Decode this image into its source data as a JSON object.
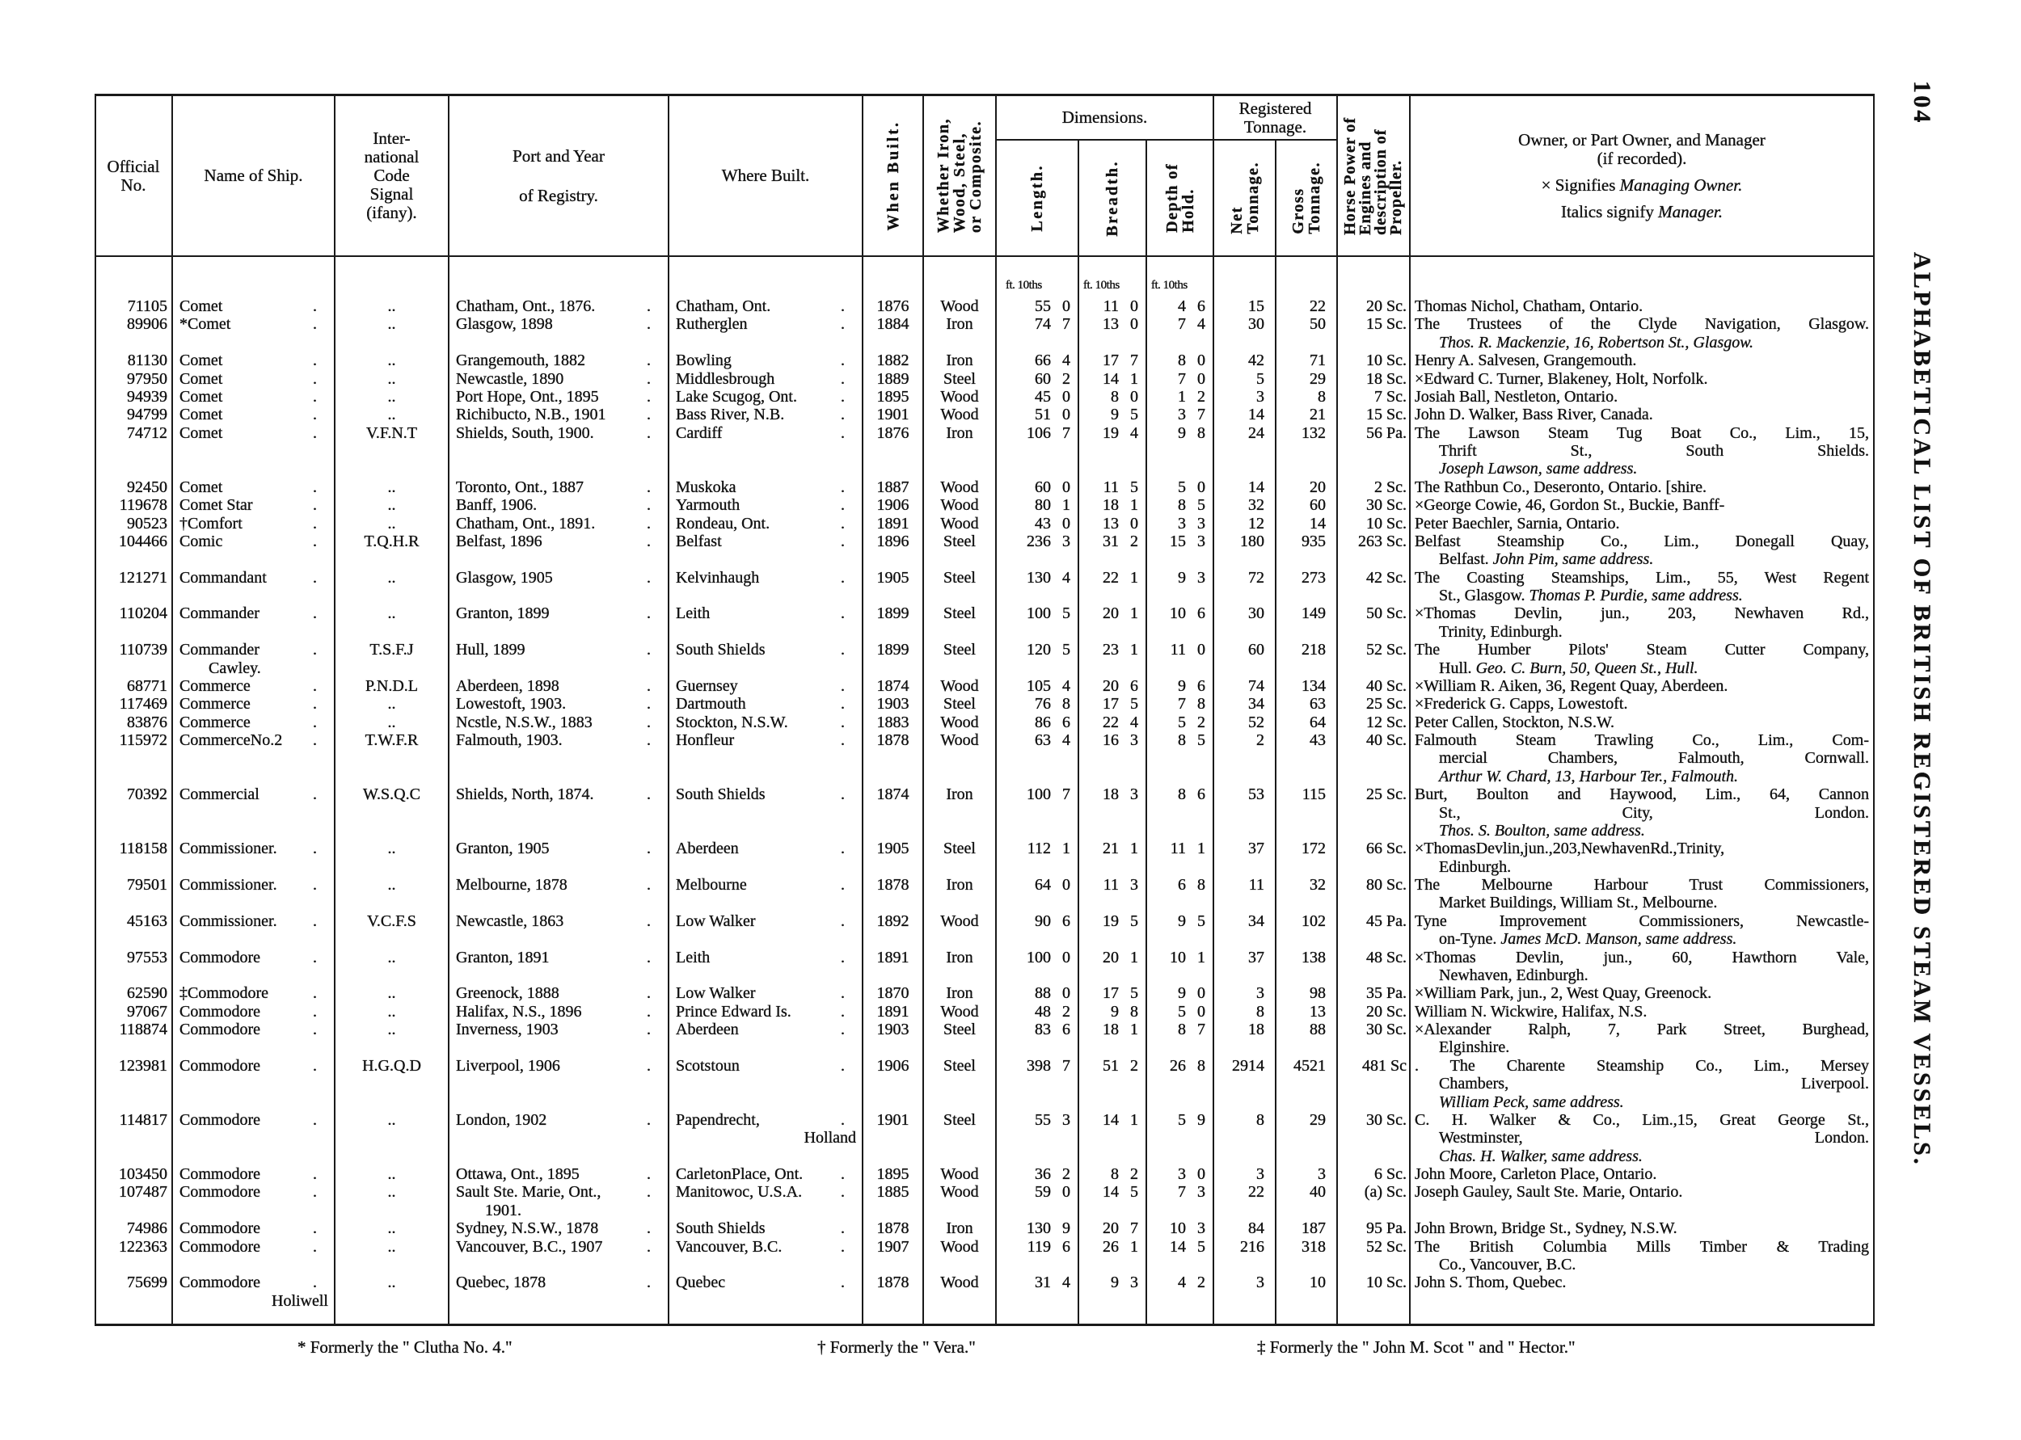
{
  "page_number": "104",
  "running_title": "ALPHABETICAL LIST OF BRITISH REGISTERED STEAM VESSELS.",
  "header": {
    "official_no": [
      "Official",
      "No."
    ],
    "name": "Name of Ship.",
    "signal": [
      "Inter-",
      "national",
      "Code",
      "Signal",
      "(ifany)."
    ],
    "port": [
      "Port and Year",
      "of Registry."
    ],
    "where_built": "Where Built.",
    "when_built": "When Built.",
    "material": [
      "Whether  Iron,",
      "Wood, Steel,",
      "or Composite."
    ],
    "dimensions": "Dimensions.",
    "length": "Length.",
    "breadth": "Breadth.",
    "depth": [
      "Depth of",
      "Hold."
    ],
    "tonnage": [
      "Registered",
      "Tonnage."
    ],
    "net": [
      "Net",
      "Tonnage."
    ],
    "gross": [
      "Gross",
      "Tonnage."
    ],
    "horse_power": [
      "Horse Power of",
      "Engines and",
      "description of",
      "Propeller."
    ],
    "owner": {
      "line1": "Owner, or Part Owner, and Manager",
      "line2": "(if recorded).",
      "line3_roman": "× Signifies ",
      "line3_italic": "Managing Owner.",
      "line4_roman": "Italics signify ",
      "line4_italic": "Manager."
    },
    "units": "ft. 10ths"
  },
  "rows": [
    {
      "no": "71105",
      "name": "Comet",
      "signal": "..",
      "port": "Chatham, Ont., 1876.",
      "where": "Chatham, Ont.",
      "year": "1876",
      "material": "Wood",
      "length": [
        "55",
        "0"
      ],
      "breadth": [
        "11",
        "0"
      ],
      "depth": [
        "4",
        "6"
      ],
      "net": "15",
      "gross": "22",
      "hp": "20 Sc.",
      "owner": [
        "Thomas Nichol, Chatham, Ontario."
      ]
    },
    {
      "no": "89906",
      "name": "*Comet",
      "signal": "..",
      "port": "Glasgow, 1898",
      "where": "Rutherglen",
      "year": "1884",
      "material": "Iron",
      "length": [
        "74",
        "7"
      ],
      "breadth": [
        "13",
        "0"
      ],
      "depth": [
        "7",
        "4"
      ],
      "net": "30",
      "gross": "50",
      "hp": "15 Sc.",
      "owner": [
        "The Trustees of the Clyde Navigation, Glasgow.",
        {
          "italic": "Thos. R. Mackenzie, 16, Robertson St., Glasgow."
        }
      ]
    },
    {
      "no": "81130",
      "name": "Comet",
      "signal": "..",
      "port": "Grangemouth, 1882",
      "where": "Bowling",
      "year": "1882",
      "material": "Iron",
      "length": [
        "66",
        "4"
      ],
      "breadth": [
        "17",
        "7"
      ],
      "depth": [
        "8",
        "0"
      ],
      "net": "42",
      "gross": "71",
      "hp": "10 Sc.",
      "owner": [
        "Henry A. Salvesen, Grangemouth."
      ]
    },
    {
      "no": "97950",
      "name": "Comet",
      "signal": "..",
      "port": "Newcastle, 1890",
      "where": "Middlesbrough",
      "year": "1889",
      "material": "Steel",
      "length": [
        "60",
        "2"
      ],
      "breadth": [
        "14",
        "1"
      ],
      "depth": [
        "7",
        "0"
      ],
      "net": "5",
      "gross": "29",
      "hp": "18 Sc.",
      "owner": [
        "×Edward C. Turner, Blakeney, Holt, Norfolk."
      ]
    },
    {
      "no": "94939",
      "name": "Comet",
      "signal": "..",
      "port": "Port Hope, Ont., 1895",
      "where": "Lake Scugog, Ont.",
      "year": "1895",
      "material": "Wood",
      "length": [
        "45",
        "0"
      ],
      "breadth": [
        "8",
        "0"
      ],
      "depth": [
        "1",
        "2"
      ],
      "net": "3",
      "gross": "8",
      "hp": "7 Sc.",
      "owner": [
        "Josiah Ball, Nestleton, Ontario."
      ]
    },
    {
      "no": "94799",
      "name": "Comet",
      "signal": "..",
      "port": "Richibucto, N.B., 1901",
      "where": "Bass River, N.B.",
      "year": "1901",
      "material": "Wood",
      "length": [
        "51",
        "0"
      ],
      "breadth": [
        "9",
        "5"
      ],
      "depth": [
        "3",
        "7"
      ],
      "net": "14",
      "gross": "21",
      "hp": "15 Sc.",
      "owner": [
        "John D. Walker, Bass River, Canada."
      ]
    },
    {
      "no": "74712",
      "name": "Comet",
      "signal": "V.F.N.T",
      "port": "Shields, South, 1900.",
      "where": "Cardiff",
      "year": "1876",
      "material": "Iron",
      "length": [
        "106",
        "7"
      ],
      "breadth": [
        "19",
        "4"
      ],
      "depth": [
        "9",
        "8"
      ],
      "net": "24",
      "gross": "132",
      "hp": "56 Pa.",
      "owner": [
        "The Lawson Steam Tug Boat Co., Lim., 15,",
        "Thrift St., South Shields.",
        {
          "italic": "Joseph Lawson, same address."
        }
      ]
    },
    {
      "no": "92450",
      "name": "Comet",
      "signal": "..",
      "port": "Toronto, Ont., 1887",
      "where": "Muskoka",
      "year": "1887",
      "material": "Wood",
      "length": [
        "60",
        "0"
      ],
      "breadth": [
        "11",
        "5"
      ],
      "depth": [
        "5",
        "0"
      ],
      "net": "14",
      "gross": "20",
      "hp": "2 Sc.",
      "owner": [
        "The Rathbun Co., Deseronto, Ontario.   [shire."
      ]
    },
    {
      "no": "119678",
      "name": "Comet Star",
      "signal": "..",
      "port": "Banff, 1906.",
      "where": "Yarmouth",
      "year": "1906",
      "material": "Wood",
      "length": [
        "80",
        "1"
      ],
      "breadth": [
        "18",
        "1"
      ],
      "depth": [
        "8",
        "5"
      ],
      "net": "32",
      "gross": "60",
      "hp": "30 Sc.",
      "owner": [
        "×George Cowie, 46, Gordon St., Buckie, Banff-"
      ]
    },
    {
      "no": "90523",
      "name": "†Comfort",
      "signal": "..",
      "port": "Chatham, Ont., 1891.",
      "where": "Rondeau, Ont.",
      "year": "1891",
      "material": "Wood",
      "length": [
        "43",
        "0"
      ],
      "breadth": [
        "13",
        "0"
      ],
      "depth": [
        "3",
        "3"
      ],
      "net": "12",
      "gross": "14",
      "hp": "10 Sc.",
      "owner": [
        "Peter Baechler, Sarnia, Ontario."
      ]
    },
    {
      "no": "104466",
      "name": "Comic",
      "signal": "T.Q.H.R",
      "port": "Belfast, 1896",
      "where": "Belfast",
      "year": "1896",
      "material": "Steel",
      "length": [
        "236",
        "3"
      ],
      "breadth": [
        "31",
        "2"
      ],
      "depth": [
        "15",
        "3"
      ],
      "net": "180",
      "gross": "935",
      "hp": "263 Sc.",
      "owner": [
        "Belfast Steamship Co., Lim., Donegall Quay,",
        {
          "roman": "Belfast.  ",
          "italic": "John Pim, same address."
        }
      ]
    },
    {
      "no": "121271",
      "name": "Commandant",
      "signal": "..",
      "port": "Glasgow, 1905",
      "where": "Kelvinhaugh",
      "year": "1905",
      "material": "Steel",
      "length": [
        "130",
        "4"
      ],
      "breadth": [
        "22",
        "1"
      ],
      "depth": [
        "9",
        "3"
      ],
      "net": "72",
      "gross": "273",
      "hp": "42 Sc.",
      "owner": [
        "The Coasting Steamships, Lim., 55, West Regent",
        {
          "roman": "St., Glasgow.  ",
          "italic": "Thomas P. Purdie, same address."
        }
      ]
    },
    {
      "no": "110204",
      "name": "Commander",
      "signal": "..",
      "port": "Granton, 1899",
      "where": "Leith",
      "year": "1899",
      "material": "Steel",
      "length": [
        "100",
        "5"
      ],
      "breadth": [
        "20",
        "1"
      ],
      "depth": [
        "10",
        "6"
      ],
      "net": "30",
      "gross": "149",
      "hp": "50 Sc.",
      "owner": [
        "×Thomas Devlin, jun., 203, Newhaven Rd.,",
        "Trinity, Edinburgh."
      ]
    },
    {
      "no": "110739",
      "name": "Commander",
      "name2": "Cawley.",
      "signal": "T.S.F.J",
      "port": "Hull, 1899",
      "where": "South Shields",
      "year": "1899",
      "material": "Steel",
      "length": [
        "120",
        "5"
      ],
      "breadth": [
        "23",
        "1"
      ],
      "depth": [
        "11",
        "0"
      ],
      "net": "60",
      "gross": "218",
      "hp": "52 Sc.",
      "owner": [
        "The Humber Pilots' Steam Cutter Company,",
        {
          "roman": "Hull.  ",
          "italic": "Geo. C. Burn, 50, Queen St., Hull."
        }
      ]
    },
    {
      "no": "68771",
      "name": "Commerce",
      "signal": "P.N.D.L",
      "port": "Aberdeen, 1898",
      "where": "Guernsey",
      "year": "1874",
      "material": "Wood",
      "length": [
        "105",
        "4"
      ],
      "breadth": [
        "20",
        "6"
      ],
      "depth": [
        "9",
        "6"
      ],
      "net": "74",
      "gross": "134",
      "hp": "40 Sc.",
      "owner": [
        "×William R. Aiken, 36, Regent Quay, Aberdeen."
      ]
    },
    {
      "no": "117469",
      "name": "Commerce",
      "signal": "..",
      "port": "Lowestoft, 1903.",
      "where": "Dartmouth",
      "year": "1903",
      "material": "Steel",
      "length": [
        "76",
        "8"
      ],
      "breadth": [
        "17",
        "5"
      ],
      "depth": [
        "7",
        "8"
      ],
      "net": "34",
      "gross": "63",
      "hp": "25 Sc.",
      "owner": [
        "×Frederick G. Capps, Lowestoft."
      ]
    },
    {
      "no": "83876",
      "name": "Commerce",
      "signal": "..",
      "port": "Ncstle, N.S.W., 1883",
      "where": "Stockton, N.S.W.",
      "year": "1883",
      "material": "Wood",
      "length": [
        "86",
        "6"
      ],
      "breadth": [
        "22",
        "4"
      ],
      "depth": [
        "5",
        "2"
      ],
      "net": "52",
      "gross": "64",
      "hp": "12 Sc.",
      "owner": [
        "Peter Callen, Stockton, N.S.W."
      ]
    },
    {
      "no": "115972",
      "name": "CommerceNo.2",
      "signal": "T.W.F.R",
      "port": "Falmouth, 1903.",
      "where": "Honfleur",
      "year": "1878",
      "material": "Wood",
      "length": [
        "63",
        "4"
      ],
      "breadth": [
        "16",
        "3"
      ],
      "depth": [
        "8",
        "5"
      ],
      "net": "2",
      "gross": "43",
      "hp": "40 Sc.",
      "owner": [
        "Falmouth Steam Trawling Co., Lim., Com-",
        "mercial Chambers, Falmouth, Cornwall.",
        {
          "italic": "Arthur W. Chard, 13, Harbour Ter., Falmouth."
        }
      ]
    },
    {
      "no": "70392",
      "name": "Commercial",
      "signal": "W.S.Q.C",
      "port": "Shields, North, 1874.",
      "where": "South Shields",
      "year": "1874",
      "material": "Iron",
      "length": [
        "100",
        "7"
      ],
      "breadth": [
        "18",
        "3"
      ],
      "depth": [
        "8",
        "6"
      ],
      "net": "53",
      "gross": "115",
      "hp": "25 Sc.",
      "owner": [
        "Burt, Boulton and Haywood, Lim., 64, Cannon",
        "St., City, London.",
        {
          "italic": "Thos. S. Boulton, same address."
        }
      ]
    },
    {
      "no": "118158",
      "name": "Commissioner.",
      "signal": "..",
      "port": "Granton, 1905",
      "where": "Aberdeen",
      "year": "1905",
      "material": "Steel",
      "length": [
        "112",
        "1"
      ],
      "breadth": [
        "21",
        "1"
      ],
      "depth": [
        "11",
        "1"
      ],
      "net": "37",
      "gross": "172",
      "hp": "66 Sc.",
      "owner": [
        "×ThomasDevlin,jun.,203,NewhavenRd.,Trinity,",
        "Edinburgh."
      ]
    },
    {
      "no": "79501",
      "name": "Commissioner.",
      "signal": "..",
      "port": "Melbourne, 1878",
      "where": "Melbourne",
      "year": "1878",
      "material": "Iron",
      "length": [
        "64",
        "0"
      ],
      "breadth": [
        "11",
        "3"
      ],
      "depth": [
        "6",
        "8"
      ],
      "net": "11",
      "gross": "32",
      "hp": "80 Sc.",
      "owner": [
        "The Melbourne Harbour Trust Commissioners,",
        "Market Buildings, William St., Melbourne."
      ]
    },
    {
      "no": "45163",
      "name": "Commissioner.",
      "signal": "V.C.F.S",
      "port": "Newcastle, 1863",
      "where": "Low Walker",
      "year": "1892",
      "material": "Wood",
      "length": [
        "90",
        "6"
      ],
      "breadth": [
        "19",
        "5"
      ],
      "depth": [
        "9",
        "5"
      ],
      "net": "34",
      "gross": "102",
      "hp": "45 Pa.",
      "owner": [
        "Tyne Improvement Commissioners, Newcastle-",
        {
          "roman": "on-Tyne.  ",
          "italic": "James McD. Manson, same address."
        }
      ]
    },
    {
      "no": "97553",
      "name": "Commodore",
      "signal": "..",
      "port": "Granton, 1891",
      "where": "Leith",
      "year": "1891",
      "material": "Iron",
      "length": [
        "100",
        "0"
      ],
      "breadth": [
        "20",
        "1"
      ],
      "depth": [
        "10",
        "1"
      ],
      "net": "37",
      "gross": "138",
      "hp": "48 Sc.",
      "owner": [
        "×Thomas Devlin, jun., 60, Hawthorn Vale,",
        "Newhaven, Edinburgh."
      ]
    },
    {
      "no": "62590",
      "name": "‡Commodore",
      "signal": "..",
      "port": "Greenock, 1888",
      "where": "Low Walker",
      "year": "1870",
      "material": "Iron",
      "length": [
        "88",
        "0"
      ],
      "breadth": [
        "17",
        "5"
      ],
      "depth": [
        "9",
        "0"
      ],
      "net": "3",
      "gross": "98",
      "hp": "35 Pa.",
      "owner": [
        "×William Park, jun., 2, West Quay, Greenock."
      ]
    },
    {
      "no": "97067",
      "name": "Commodore",
      "signal": "..",
      "port": "Halifax, N.S., 1896",
      "where": "Prince Edward Is.",
      "year": "1891",
      "material": "Wood",
      "length": [
        "48",
        "2"
      ],
      "breadth": [
        "9",
        "8"
      ],
      "depth": [
        "5",
        "0"
      ],
      "net": "8",
      "gross": "13",
      "hp": "20 Sc.",
      "owner": [
        "William N. Wickwire, Halifax, N.S."
      ]
    },
    {
      "no": "118874",
      "name": "Commodore",
      "signal": "..",
      "port": "Inverness, 1903",
      "where": "Aberdeen",
      "year": "1903",
      "material": "Steel",
      "length": [
        "83",
        "6"
      ],
      "breadth": [
        "18",
        "1"
      ],
      "depth": [
        "8",
        "7"
      ],
      "net": "18",
      "gross": "88",
      "hp": "30 Sc.",
      "owner": [
        "×Alexander Ralph, 7, Park Street, Burghead,",
        "Elginshire."
      ]
    },
    {
      "no": "123981",
      "name": "Commodore",
      "signal": "H.G.Q.D",
      "port": "Liverpool, 1906",
      "where": "Scotstoun",
      "year": "1906",
      "material": "Steel",
      "length": [
        "398",
        "7"
      ],
      "breadth": [
        "51",
        "2"
      ],
      "depth": [
        "26",
        "8"
      ],
      "net": "2914",
      "gross": "4521",
      "hp": "481 Sc",
      "owner": [
        ". The Charente Steamship Co., Lim., Mersey",
        "Chambers, Liverpool.",
        {
          "italic": "William Peck, same address."
        }
      ]
    },
    {
      "no": "114817",
      "name": "Commodore",
      "signal": "..",
      "port": "London, 1902",
      "where": "Papendrecht,",
      "where2": "Holland",
      "year": "1901",
      "material": "Steel",
      "length": [
        "55",
        "3"
      ],
      "breadth": [
        "14",
        "1"
      ],
      "depth": [
        "5",
        "9"
      ],
      "net": "8",
      "gross": "29",
      "hp": "30 Sc.",
      "owner": [
        "C. H. Walker & Co., Lim.,15, Great George St.,",
        "Westminster, London.",
        {
          "italic": "Chas. H. Walker, same address."
        }
      ]
    },
    {
      "no": "103450",
      "name": "Commodore",
      "signal": "..",
      "port": "Ottawa, Ont., 1895",
      "where": "CarletonPlace, Ont.",
      "year": "1895",
      "material": "Wood",
      "length": [
        "36",
        "2"
      ],
      "breadth": [
        "8",
        "2"
      ],
      "depth": [
        "3",
        "0"
      ],
      "net": "3",
      "gross": "3",
      "hp": "6 Sc.",
      "owner": [
        "John Moore, Carleton Place, Ontario."
      ]
    },
    {
      "no": "107487",
      "name": "Commodore",
      "signal": "..",
      "port": "Sault Ste. Marie, Ont.,",
      "port2": "1901.",
      "where": "Manitowoc, U.S.A.",
      "year": "1885",
      "material": "Wood",
      "length": [
        "59",
        "0"
      ],
      "breadth": [
        "14",
        "5"
      ],
      "depth": [
        "7",
        "3"
      ],
      "net": "22",
      "gross": "40",
      "hp": "(a) Sc.",
      "owner": [
        "Joseph Gauley, Sault Ste. Marie, Ontario."
      ]
    },
    {
      "no": "74986",
      "name": "Commodore",
      "signal": "..",
      "port": "Sydney, N.S.W., 1878",
      "where": "South Shields",
      "year": "1878",
      "material": "Iron",
      "length": [
        "130",
        "9"
      ],
      "breadth": [
        "20",
        "7"
      ],
      "depth": [
        "10",
        "3"
      ],
      "net": "84",
      "gross": "187",
      "hp": "95 Pa.",
      "owner": [
        "John Brown, Bridge St., Sydney, N.S.W."
      ]
    },
    {
      "no": "122363",
      "name": "Commodore",
      "signal": "..",
      "port": "Vancouver, B.C., 1907",
      "where": "Vancouver, B.C.",
      "year": "1907",
      "material": "Wood",
      "length": [
        "119",
        "6"
      ],
      "breadth": [
        "26",
        "1"
      ],
      "depth": [
        "14",
        "5"
      ],
      "net": "216",
      "gross": "318",
      "hp": "52 Sc.",
      "owner": [
        "The British Columbia Mills Timber & Trading",
        "Co., Vancouver, B.C."
      ]
    },
    {
      "no": "75699",
      "name": "Commodore",
      "name2": "Holiwell",
      "signal": "..",
      "port": "Quebec, 1878",
      "where": "Quebec",
      "year": "1878",
      "material": "Wood",
      "length": [
        "31",
        "4"
      ],
      "breadth": [
        "9",
        "3"
      ],
      "depth": [
        "4",
        "2"
      ],
      "net": "3",
      "gross": "10",
      "hp": "10 Sc.",
      "owner": [
        "John S. Thom, Quebec."
      ]
    }
  ],
  "footnotes": [
    "* Formerly the \" Clutha No. 4.\"",
    "† Formerly the \" Vera.\"",
    "‡ Formerly the \" John M. Scot \" and \" Hector.\""
  ]
}
